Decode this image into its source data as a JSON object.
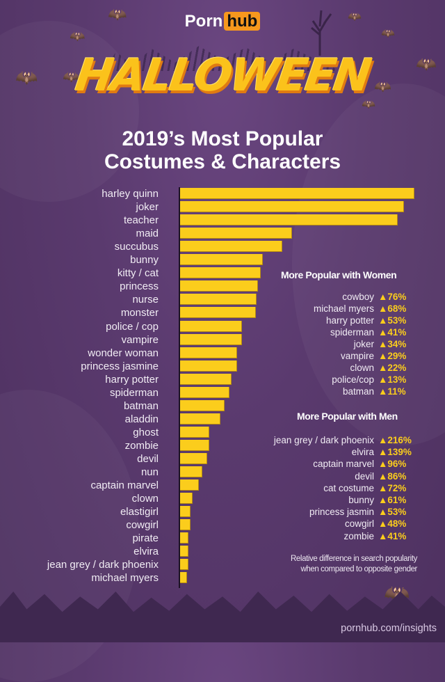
{
  "header": {
    "logo_left": "Porn",
    "logo_right": "hub",
    "banner": "HALLOWEEN",
    "title_line1": "2019’s Most Popular",
    "title_line2": "Costumes & Characters"
  },
  "colors": {
    "background": "#5a3a6e",
    "bar": "#fbcd1c",
    "accent_orange": "#f7981d",
    "arrow_value": "#fbcd1c"
  },
  "chart_data": {
    "type": "bar",
    "orientation": "horizontal",
    "title": "2019’s Most Popular Costumes & Characters",
    "xlabel": "",
    "ylabel": "",
    "grid": false,
    "value_note": "Relative popularity; bar lengths estimated in pixels (no numeric axis shown)",
    "categories": [
      "harley quinn",
      "joker",
      "teacher",
      "maid",
      "succubus",
      "bunny",
      "kitty / cat",
      "princess",
      "nurse",
      "monster",
      "police / cop",
      "vampire",
      "wonder woman",
      "princess jasmine",
      "harry potter",
      "spiderman",
      "batman",
      "aladdin",
      "ghost",
      "zombie",
      "devil",
      "nun",
      "captain marvel",
      "clown",
      "elastigirl",
      "cowgirl",
      "pirate",
      "elvira",
      "jean grey / dark phoenix",
      "michael myers"
    ],
    "values": [
      337,
      322,
      313,
      161,
      147,
      119,
      116,
      112,
      110,
      109,
      89,
      89,
      82,
      82,
      74,
      71,
      64,
      58,
      42,
      42,
      39,
      32,
      27,
      18,
      15,
      15,
      12,
      12,
      12,
      10
    ],
    "xlim": [
      0,
      340
    ]
  },
  "women": {
    "title": "More Popular with Women",
    "items": [
      {
        "name": "cowboy",
        "value": "▲76%"
      },
      {
        "name": "michael myers",
        "value": "▲68%"
      },
      {
        "name": "harry potter",
        "value": "▲53%"
      },
      {
        "name": "spiderman",
        "value": "▲41%"
      },
      {
        "name": "joker",
        "value": "▲34%"
      },
      {
        "name": "vampire",
        "value": "▲29%"
      },
      {
        "name": "clown",
        "value": "▲22%"
      },
      {
        "name": "police/cop",
        "value": "▲13%"
      },
      {
        "name": "batman",
        "value": "▲11%"
      }
    ]
  },
  "men": {
    "title": "More Popular with Men",
    "items": [
      {
        "name": "jean grey / dark phoenix",
        "value": "▲216%"
      },
      {
        "name": "elvira",
        "value": "▲139%"
      },
      {
        "name": "captain marvel",
        "value": "▲96%"
      },
      {
        "name": "devil",
        "value": "▲86%"
      },
      {
        "name": "cat costume",
        "value": "▲72%"
      },
      {
        "name": "bunny",
        "value": "▲61%"
      },
      {
        "name": "princess jasmin",
        "value": "▲53%"
      },
      {
        "name": "cowgirl",
        "value": "▲48%"
      },
      {
        "name": "zombie",
        "value": "▲41%"
      }
    ]
  },
  "note": {
    "line1": "Relative difference in search popularity",
    "line2": "when compared to opposite gender"
  },
  "footer": {
    "url": "pornhub.com/insights"
  },
  "icons": {
    "bat": "bat-icon",
    "pumpkin": "jack-o-lantern-icon",
    "tree": "dead-tree-icon",
    "up_arrow": "triangle-up-icon"
  }
}
